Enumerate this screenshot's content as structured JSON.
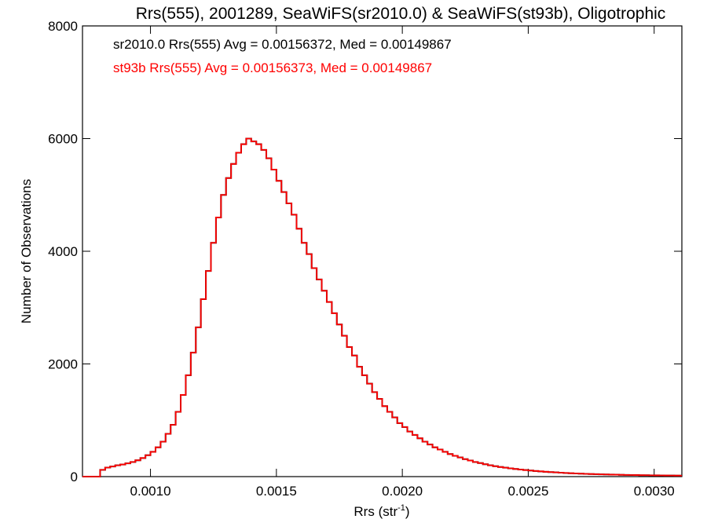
{
  "chart_data": {
    "type": "line",
    "style": "step",
    "title": "Rrs(555), 2001289, SeaWiFS(sr2010.0) & SeaWiFS(st93b), Oligotrophic",
    "xlabel": "Rrs (str",
    "xlabel_sup": "-1",
    "xlabel_close": ")",
    "ylabel": "Number of Observations",
    "xlim": [
      0.00073,
      0.00311
    ],
    "ylim": [
      0,
      8000
    ],
    "xticks": [
      {
        "value": 0.001,
        "label": "0.0010"
      },
      {
        "value": 0.0015,
        "label": "0.0015"
      },
      {
        "value": 0.002,
        "label": "0.0020"
      },
      {
        "value": 0.0025,
        "label": "0.0025"
      },
      {
        "value": 0.003,
        "label": "0.0030"
      }
    ],
    "yticks": [
      {
        "value": 0,
        "label": "0"
      },
      {
        "value": 2000,
        "label": "2000"
      },
      {
        "value": 4000,
        "label": "4000"
      },
      {
        "value": 6000,
        "label": "6000"
      },
      {
        "value": 8000,
        "label": "8000"
      }
    ],
    "annotations": [
      {
        "text": "sr2010.0 Rrs(555) Avg = 0.00156372, Med = 0.00149867",
        "color": "#000000"
      },
      {
        "text": "st93b Rrs(555) Avg = 0.00156373, Med = 0.00149867",
        "color": "#ff0000"
      }
    ],
    "series": [
      {
        "color": "#000000",
        "points": [
          [
            0.00073,
            0
          ],
          [
            0.00079,
            0
          ],
          [
            0.0008,
            120
          ],
          [
            0.00082,
            160
          ],
          [
            0.00084,
            180
          ],
          [
            0.00086,
            200
          ],
          [
            0.00088,
            215
          ],
          [
            0.0009,
            235
          ],
          [
            0.00092,
            260
          ],
          [
            0.00094,
            290
          ],
          [
            0.00096,
            330
          ],
          [
            0.00098,
            380
          ],
          [
            0.001,
            440
          ],
          [
            0.00102,
            520
          ],
          [
            0.00104,
            620
          ],
          [
            0.00106,
            760
          ],
          [
            0.00108,
            920
          ],
          [
            0.0011,
            1150
          ],
          [
            0.00112,
            1450
          ],
          [
            0.00114,
            1800
          ],
          [
            0.00116,
            2200
          ],
          [
            0.00118,
            2650
          ],
          [
            0.0012,
            3150
          ],
          [
            0.00122,
            3650
          ],
          [
            0.00124,
            4150
          ],
          [
            0.00126,
            4600
          ],
          [
            0.00128,
            5000
          ],
          [
            0.0013,
            5300
          ],
          [
            0.00132,
            5550
          ],
          [
            0.00134,
            5750
          ],
          [
            0.00136,
            5900
          ],
          [
            0.00138,
            6000
          ],
          [
            0.0014,
            5950
          ],
          [
            0.00142,
            5900
          ],
          [
            0.00144,
            5800
          ],
          [
            0.00146,
            5650
          ],
          [
            0.00148,
            5450
          ],
          [
            0.0015,
            5250
          ],
          [
            0.00152,
            5050
          ],
          [
            0.00154,
            4850
          ],
          [
            0.00156,
            4650
          ],
          [
            0.00158,
            4400
          ],
          [
            0.0016,
            4150
          ],
          [
            0.00162,
            3950
          ],
          [
            0.00164,
            3700
          ],
          [
            0.00166,
            3500
          ],
          [
            0.00168,
            3300
          ],
          [
            0.0017,
            3100
          ],
          [
            0.00172,
            2900
          ],
          [
            0.00174,
            2700
          ],
          [
            0.00176,
            2500
          ],
          [
            0.00178,
            2300
          ],
          [
            0.0018,
            2150
          ],
          [
            0.00182,
            1950
          ],
          [
            0.00184,
            1800
          ],
          [
            0.00186,
            1650
          ],
          [
            0.00188,
            1500
          ],
          [
            0.0019,
            1380
          ],
          [
            0.00192,
            1250
          ],
          [
            0.00194,
            1150
          ],
          [
            0.00196,
            1050
          ],
          [
            0.00198,
            950
          ],
          [
            0.002,
            880
          ],
          [
            0.00202,
            800
          ],
          [
            0.00204,
            740
          ],
          [
            0.00206,
            680
          ],
          [
            0.00208,
            620
          ],
          [
            0.0021,
            570
          ],
          [
            0.00212,
            520
          ],
          [
            0.00214,
            480
          ],
          [
            0.00216,
            440
          ],
          [
            0.00218,
            400
          ],
          [
            0.0022,
            370
          ],
          [
            0.00222,
            340
          ],
          [
            0.00224,
            310
          ],
          [
            0.00226,
            285
          ],
          [
            0.00228,
            260
          ],
          [
            0.0023,
            240
          ],
          [
            0.00232,
            220
          ],
          [
            0.00234,
            200
          ],
          [
            0.00236,
            185
          ],
          [
            0.00238,
            170
          ],
          [
            0.0024,
            158
          ],
          [
            0.00242,
            146
          ],
          [
            0.00244,
            135
          ],
          [
            0.00246,
            125
          ],
          [
            0.00248,
            116
          ],
          [
            0.0025,
            108
          ],
          [
            0.00252,
            100
          ],
          [
            0.00254,
            93
          ],
          [
            0.00256,
            86
          ],
          [
            0.00258,
            80
          ],
          [
            0.0026,
            75
          ],
          [
            0.00262,
            70
          ],
          [
            0.00264,
            65
          ],
          [
            0.00266,
            60
          ],
          [
            0.00268,
            56
          ],
          [
            0.0027,
            52
          ],
          [
            0.00272,
            49
          ],
          [
            0.00274,
            46
          ],
          [
            0.00276,
            43
          ],
          [
            0.00278,
            40
          ],
          [
            0.0028,
            38
          ],
          [
            0.00282,
            36
          ],
          [
            0.00284,
            34
          ],
          [
            0.00286,
            32
          ],
          [
            0.00288,
            30
          ],
          [
            0.0029,
            28
          ],
          [
            0.00292,
            27
          ],
          [
            0.00294,
            25
          ],
          [
            0.00296,
            24
          ],
          [
            0.00298,
            23
          ],
          [
            0.003,
            22
          ],
          [
            0.00302,
            21
          ],
          [
            0.00304,
            20
          ],
          [
            0.00306,
            19
          ],
          [
            0.00308,
            18
          ],
          [
            0.0031,
            17
          ]
        ]
      },
      {
        "color": "#ff0000",
        "points": [
          [
            0.00073,
            0
          ],
          [
            0.00079,
            0
          ],
          [
            0.0008,
            120
          ],
          [
            0.00082,
            160
          ],
          [
            0.00084,
            180
          ],
          [
            0.00086,
            200
          ],
          [
            0.00088,
            215
          ],
          [
            0.0009,
            235
          ],
          [
            0.00092,
            260
          ],
          [
            0.00094,
            290
          ],
          [
            0.00096,
            330
          ],
          [
            0.00098,
            380
          ],
          [
            0.001,
            440
          ],
          [
            0.00102,
            520
          ],
          [
            0.00104,
            620
          ],
          [
            0.00106,
            760
          ],
          [
            0.00108,
            920
          ],
          [
            0.0011,
            1150
          ],
          [
            0.00112,
            1450
          ],
          [
            0.00114,
            1800
          ],
          [
            0.00116,
            2200
          ],
          [
            0.00118,
            2650
          ],
          [
            0.0012,
            3150
          ],
          [
            0.00122,
            3650
          ],
          [
            0.00124,
            4150
          ],
          [
            0.00126,
            4600
          ],
          [
            0.00128,
            5000
          ],
          [
            0.0013,
            5300
          ],
          [
            0.00132,
            5550
          ],
          [
            0.00134,
            5750
          ],
          [
            0.00136,
            5900
          ],
          [
            0.00138,
            6000
          ],
          [
            0.0014,
            5950
          ],
          [
            0.00142,
            5900
          ],
          [
            0.00144,
            5800
          ],
          [
            0.00146,
            5650
          ],
          [
            0.00148,
            5450
          ],
          [
            0.0015,
            5250
          ],
          [
            0.00152,
            5050
          ],
          [
            0.00154,
            4850
          ],
          [
            0.00156,
            4650
          ],
          [
            0.00158,
            4400
          ],
          [
            0.0016,
            4150
          ],
          [
            0.00162,
            3950
          ],
          [
            0.00164,
            3700
          ],
          [
            0.00166,
            3500
          ],
          [
            0.00168,
            3300
          ],
          [
            0.0017,
            3100
          ],
          [
            0.00172,
            2900
          ],
          [
            0.00174,
            2700
          ],
          [
            0.00176,
            2500
          ],
          [
            0.00178,
            2300
          ],
          [
            0.0018,
            2150
          ],
          [
            0.00182,
            1950
          ],
          [
            0.00184,
            1800
          ],
          [
            0.00186,
            1650
          ],
          [
            0.00188,
            1500
          ],
          [
            0.0019,
            1380
          ],
          [
            0.00192,
            1250
          ],
          [
            0.00194,
            1150
          ],
          [
            0.00196,
            1050
          ],
          [
            0.00198,
            950
          ],
          [
            0.002,
            880
          ],
          [
            0.00202,
            800
          ],
          [
            0.00204,
            740
          ],
          [
            0.00206,
            680
          ],
          [
            0.00208,
            620
          ],
          [
            0.0021,
            570
          ],
          [
            0.00212,
            520
          ],
          [
            0.00214,
            480
          ],
          [
            0.00216,
            440
          ],
          [
            0.00218,
            400
          ],
          [
            0.0022,
            370
          ],
          [
            0.00222,
            340
          ],
          [
            0.00224,
            310
          ],
          [
            0.00226,
            285
          ],
          [
            0.00228,
            260
          ],
          [
            0.0023,
            240
          ],
          [
            0.00232,
            220
          ],
          [
            0.00234,
            200
          ],
          [
            0.00236,
            185
          ],
          [
            0.00238,
            170
          ],
          [
            0.0024,
            158
          ],
          [
            0.00242,
            146
          ],
          [
            0.00244,
            135
          ],
          [
            0.00246,
            125
          ],
          [
            0.00248,
            116
          ],
          [
            0.0025,
            108
          ],
          [
            0.00252,
            100
          ],
          [
            0.00254,
            93
          ],
          [
            0.00256,
            86
          ],
          [
            0.00258,
            80
          ],
          [
            0.0026,
            75
          ],
          [
            0.00262,
            70
          ],
          [
            0.00264,
            65
          ],
          [
            0.00266,
            60
          ],
          [
            0.00268,
            56
          ],
          [
            0.0027,
            52
          ],
          [
            0.00272,
            49
          ],
          [
            0.00274,
            46
          ],
          [
            0.00276,
            43
          ],
          [
            0.00278,
            40
          ],
          [
            0.0028,
            38
          ],
          [
            0.00282,
            36
          ],
          [
            0.00284,
            34
          ],
          [
            0.00286,
            32
          ],
          [
            0.00288,
            30
          ],
          [
            0.0029,
            28
          ],
          [
            0.00292,
            27
          ],
          [
            0.00294,
            25
          ],
          [
            0.00296,
            24
          ],
          [
            0.00298,
            23
          ],
          [
            0.003,
            22
          ],
          [
            0.00302,
            21
          ],
          [
            0.00304,
            20
          ],
          [
            0.00306,
            19
          ],
          [
            0.00308,
            18
          ],
          [
            0.0031,
            17
          ]
        ]
      }
    ]
  }
}
